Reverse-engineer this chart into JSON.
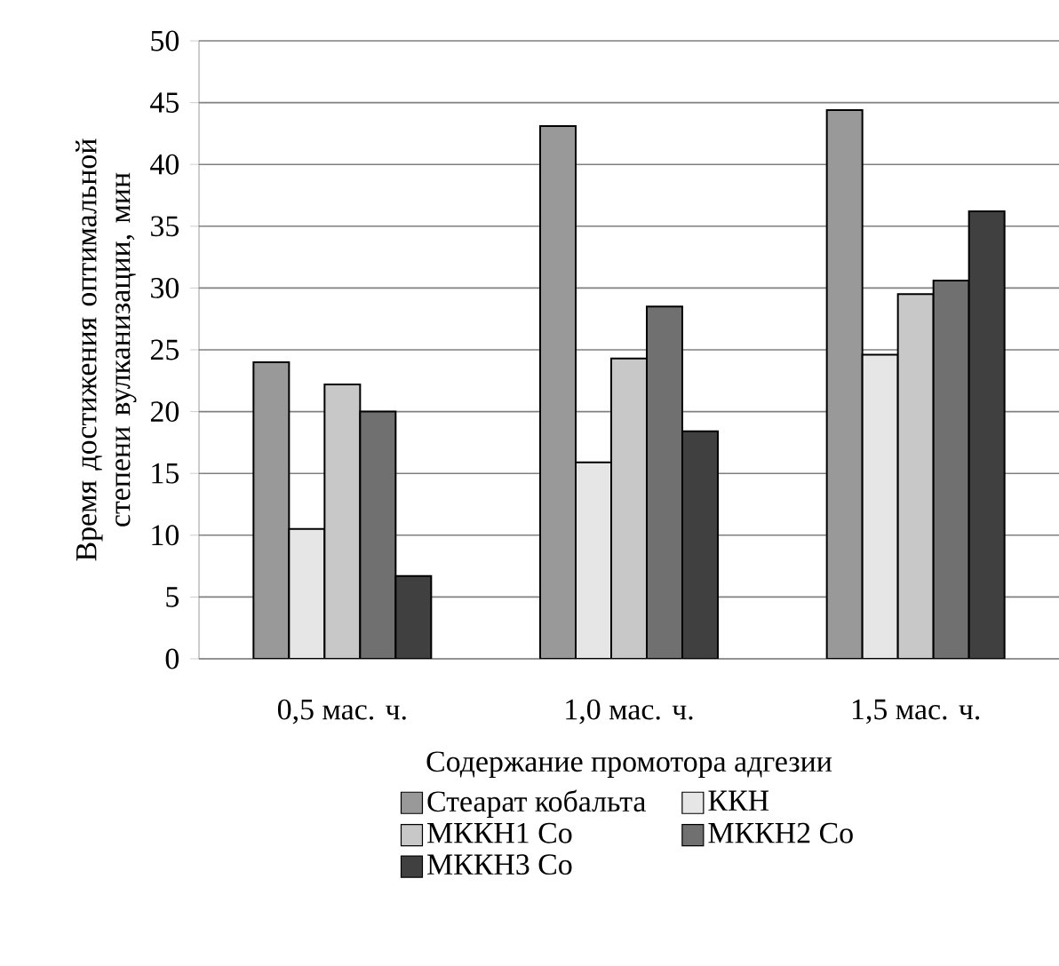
{
  "chart_data": {
    "type": "bar",
    "categories": [
      "0,5 мас. ч.",
      "1,0 мас. ч.",
      "1,5 мас. ч."
    ],
    "xlabel": "Содержание промотора адгезии",
    "ylabel": "Время достижения оптимальной степени вулканизации, мин",
    "series": [
      {
        "name": "Стеарат кобальта",
        "color": "#999999",
        "values": [
          24.0,
          43.1,
          44.4
        ]
      },
      {
        "name": "ККН",
        "color": "#e6e6e6",
        "values": [
          10.5,
          15.9,
          24.6
        ]
      },
      {
        "name": "МККН1 Co",
        "color": "#c8c8c8",
        "values": [
          22.2,
          24.3,
          29.5
        ]
      },
      {
        "name": "МККН2 Co",
        "color": "#707070",
        "values": [
          20.0,
          28.5,
          30.6
        ]
      },
      {
        "name": "МККН3 Co",
        "color": "#404040",
        "values": [
          6.7,
          18.4,
          36.2
        ]
      }
    ],
    "ylim": [
      0,
      50
    ],
    "yticks": [
      0,
      5,
      10,
      15,
      20,
      25,
      30,
      35,
      40,
      45,
      50
    ],
    "grid": "y",
    "legend": "bottom"
  }
}
